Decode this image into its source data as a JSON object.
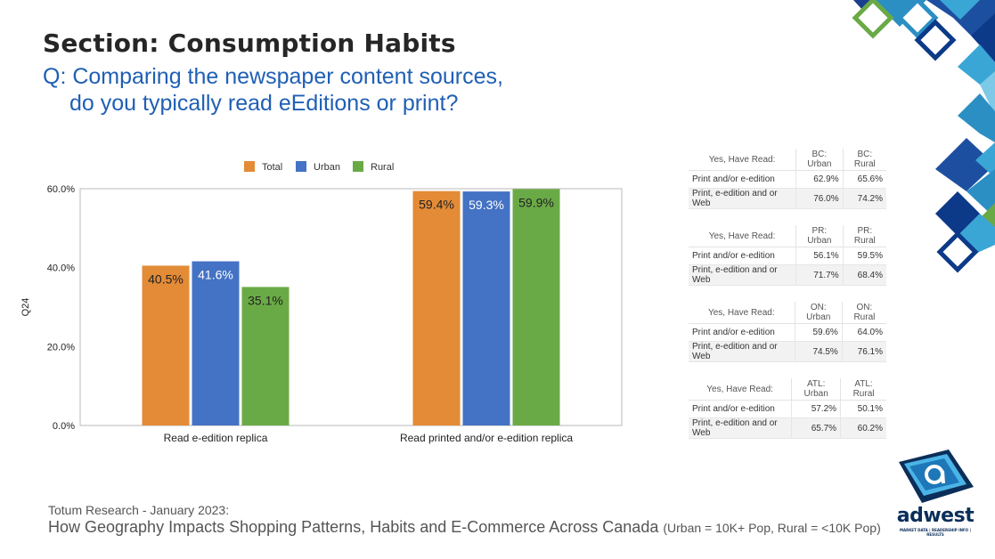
{
  "header": {
    "section_title": "Section: Consumption Habits",
    "question_line1": "Q: Comparing the newspaper content sources,",
    "question_line2": "do you typically read eEditions or print?"
  },
  "chart_data": {
    "type": "bar",
    "categories": [
      "Read e-edition replica",
      "Read printed and/or e-edition replica"
    ],
    "series": [
      {
        "name": "Total",
        "color": "#e38b36",
        "values": [
          40.5,
          59.4
        ],
        "labels": [
          "40.5%",
          "59.4%"
        ]
      },
      {
        "name": "Urban",
        "color": "#4472c4",
        "values": [
          41.6,
          59.3
        ],
        "labels": [
          "41.6%",
          "59.3%"
        ]
      },
      {
        "name": "Rural",
        "color": "#6aaa46",
        "values": [
          35.1,
          59.9
        ],
        "labels": [
          "35.1%",
          "59.9%"
        ]
      }
    ],
    "ylabel": "Q24",
    "ylim": [
      0,
      60
    ],
    "yticks": [
      "0.0%",
      "20.0%",
      "40.0%",
      "60.0%"
    ],
    "ytick_values": [
      0,
      20,
      40,
      60
    ],
    "legend_position": "top",
    "grid": false
  },
  "tables": [
    {
      "headers": [
        "Yes, Have Read:",
        "BC: Urban",
        "BC: Rural"
      ],
      "rows": [
        {
          "label": "Print and/or e-edition",
          "urban": "62.9%",
          "rural": "65.6%"
        },
        {
          "label": "Print, e-edition and or Web",
          "urban": "76.0%",
          "rural": "74.2%"
        }
      ]
    },
    {
      "headers": [
        "Yes, Have Read:",
        "PR: Urban",
        "PR: Rural"
      ],
      "rows": [
        {
          "label": "Print and/or e-edition",
          "urban": "56.1%",
          "rural": "59.5%"
        },
        {
          "label": "Print, e-edition and or Web",
          "urban": "71.7%",
          "rural": "68.4%"
        }
      ]
    },
    {
      "headers": [
        "Yes, Have Read:",
        "ON: Urban",
        "ON: Rural"
      ],
      "rows": [
        {
          "label": "Print and/or e-edition",
          "urban": "59.6%",
          "rural": "64.0%"
        },
        {
          "label": "Print, e-edition and or Web",
          "urban": "74.5%",
          "rural": "76.1%"
        }
      ]
    },
    {
      "headers": [
        "Yes, Have Read:",
        "ATL: Urban",
        "ATL: Rural"
      ],
      "rows": [
        {
          "label": "Print and/or e-edition",
          "urban": "57.2%",
          "rural": "50.1%"
        },
        {
          "label": "Print, e-edition and or Web",
          "urban": "65.7%",
          "rural": "60.2%"
        }
      ]
    }
  ],
  "footer": {
    "source": "Totum Research - January 2023:",
    "title": "How Geography Impacts Shopping Patterns, Habits and E-Commerce Across Canada",
    "note": "(Urban = 10K+ Pop, Rural = <10K Pop)"
  },
  "logo": {
    "name": "adwest",
    "tagline": "MARKET DATA | READERSHIP INFO | RESULTS"
  }
}
